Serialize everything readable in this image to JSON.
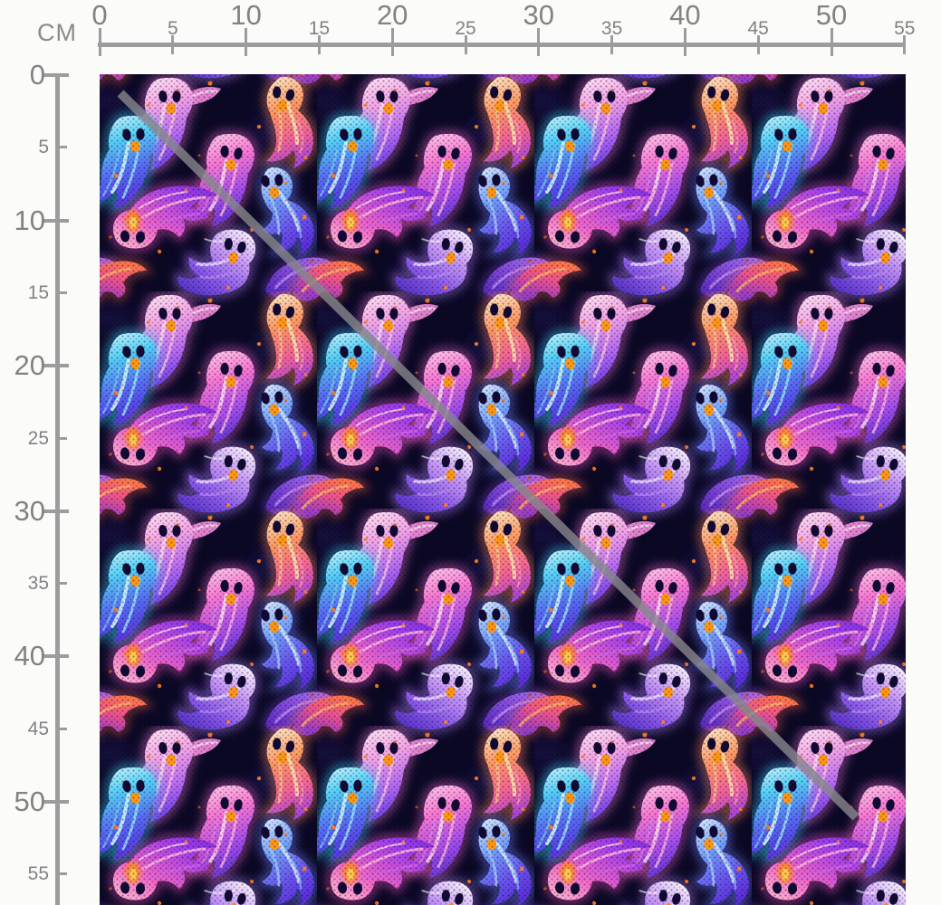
{
  "rulers": {
    "unit": "CM",
    "horizontal": {
      "tick_values": [
        0,
        5,
        10,
        15,
        20,
        25,
        30,
        35,
        40,
        45,
        50,
        55
      ],
      "major_step": 10
    },
    "vertical": {
      "tick_values": [
        0,
        5,
        10,
        15,
        20,
        25,
        30,
        35,
        40,
        45,
        50,
        55
      ],
      "major_step": 10
    }
  },
  "swatch": {
    "description": "Neon watercolor Halloween ghost repeating fabric print on dark navy knit",
    "motifs": [
      "pale pink ghost",
      "coral ghost",
      "cyan ghost",
      "pink ghost",
      "blue ghost",
      "magenta comet ghost",
      "lavender ghost",
      "purple wisp",
      "red-orange wisp",
      "orange speckles"
    ],
    "palette": {
      "background": "#0b0824",
      "cyan": "#5ad2f8",
      "blue": "#6a58ea",
      "pink": "#f77ad2",
      "magenta": "#ee62c8",
      "coral": "#ff8a62",
      "lavender": "#c699f5",
      "pale": "#ffeaf8",
      "orange_accent": "#ff8c2a",
      "eyes": "#120a32"
    },
    "watermark": {
      "type": "diagonal-line",
      "color": "#87878c"
    }
  }
}
